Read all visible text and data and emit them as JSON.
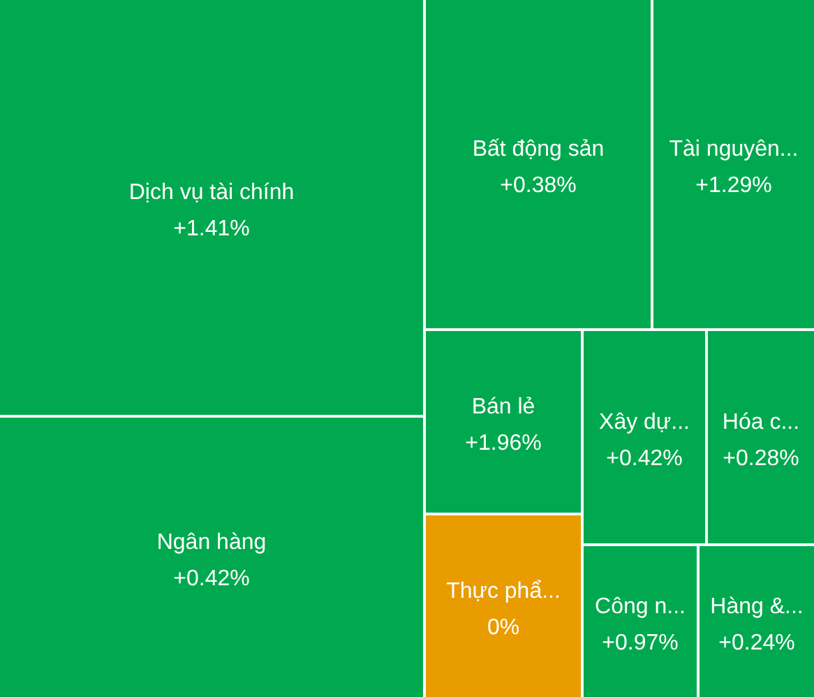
{
  "chart_data": {
    "type": "other",
    "categories": [
      "Dịch vụ tài chính",
      "Ngân hàng",
      "Bất động sản",
      "Tài nguyên...",
      "Bán lẻ",
      "Thực phẩ...",
      "Xây dự...",
      "Hóa c...",
      "Công n...",
      "Hàng &..."
    ],
    "values": [
      1.41,
      0.42,
      0.38,
      1.29,
      1.96,
      0,
      0.42,
      0.28,
      0.97,
      0.24
    ],
    "value_labels": [
      "+1.41%",
      "+0.42%",
      "+0.38%",
      "+1.29%",
      "+1.96%",
      "0%",
      "+0.42%",
      "+0.28%",
      "+0.97%",
      "+0.24%"
    ],
    "colors": [
      "#00a94f",
      "#00a94f",
      "#00a94f",
      "#00a94f",
      "#00a94f",
      "#e89c00",
      "#00a94f",
      "#00a94f",
      "#00a94f",
      "#00a94f"
    ],
    "data_labels": true
  }
}
